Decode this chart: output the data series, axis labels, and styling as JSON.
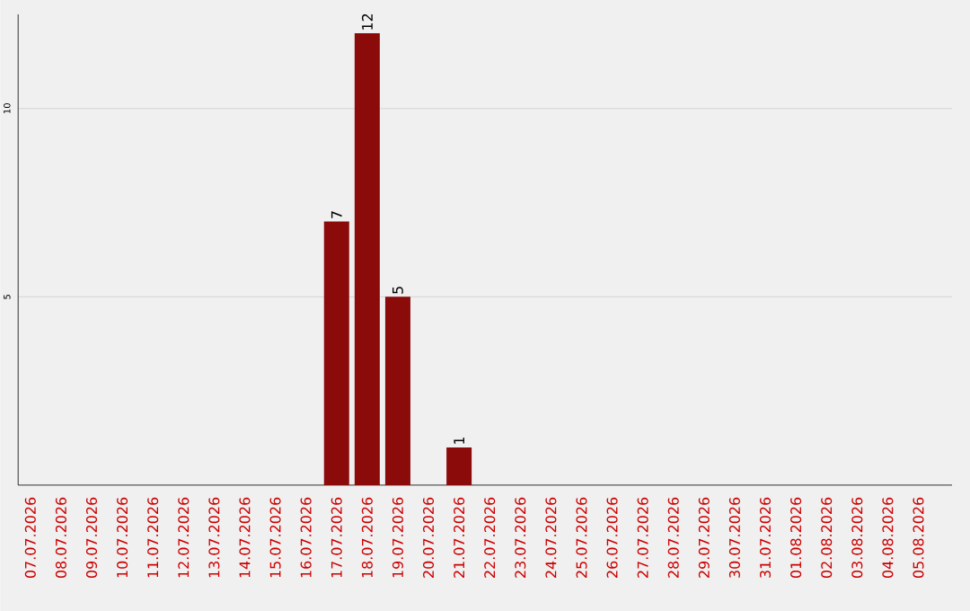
{
  "chart_data": {
    "type": "bar",
    "categories": [
      "07.07.2026",
      "08.07.2026",
      "09.07.2026",
      "10.07.2026",
      "11.07.2026",
      "12.07.2026",
      "13.07.2026",
      "14.07.2026",
      "15.07.2026",
      "16.07.2026",
      "17.07.2026",
      "18.07.2026",
      "19.07.2026",
      "20.07.2026",
      "21.07.2026",
      "22.07.2026",
      "23.07.2026",
      "24.07.2026",
      "25.07.2026",
      "26.07.2026",
      "27.07.2026",
      "28.07.2026",
      "29.07.2026",
      "30.07.2026",
      "31.07.2026",
      "01.08.2026",
      "02.08.2026",
      "03.08.2026",
      "04.08.2026",
      "05.08.2026"
    ],
    "values": [
      0,
      0,
      0,
      0,
      0,
      0,
      0,
      0,
      0,
      0,
      7,
      12,
      5,
      0,
      1,
      0,
      0,
      0,
      0,
      0,
      0,
      0,
      0,
      0,
      0,
      0,
      0,
      0,
      0,
      0
    ],
    "value_labels": [
      null,
      null,
      null,
      null,
      null,
      null,
      null,
      null,
      null,
      null,
      "7",
      "12",
      "5",
      null,
      "1",
      null,
      null,
      null,
      null,
      null,
      null,
      null,
      null,
      null,
      null,
      null,
      null,
      null,
      null,
      null
    ],
    "color": "#8b0a0a",
    "ylim": [
      0,
      12.5
    ],
    "yticks": [
      5,
      10
    ],
    "grid": "y"
  }
}
